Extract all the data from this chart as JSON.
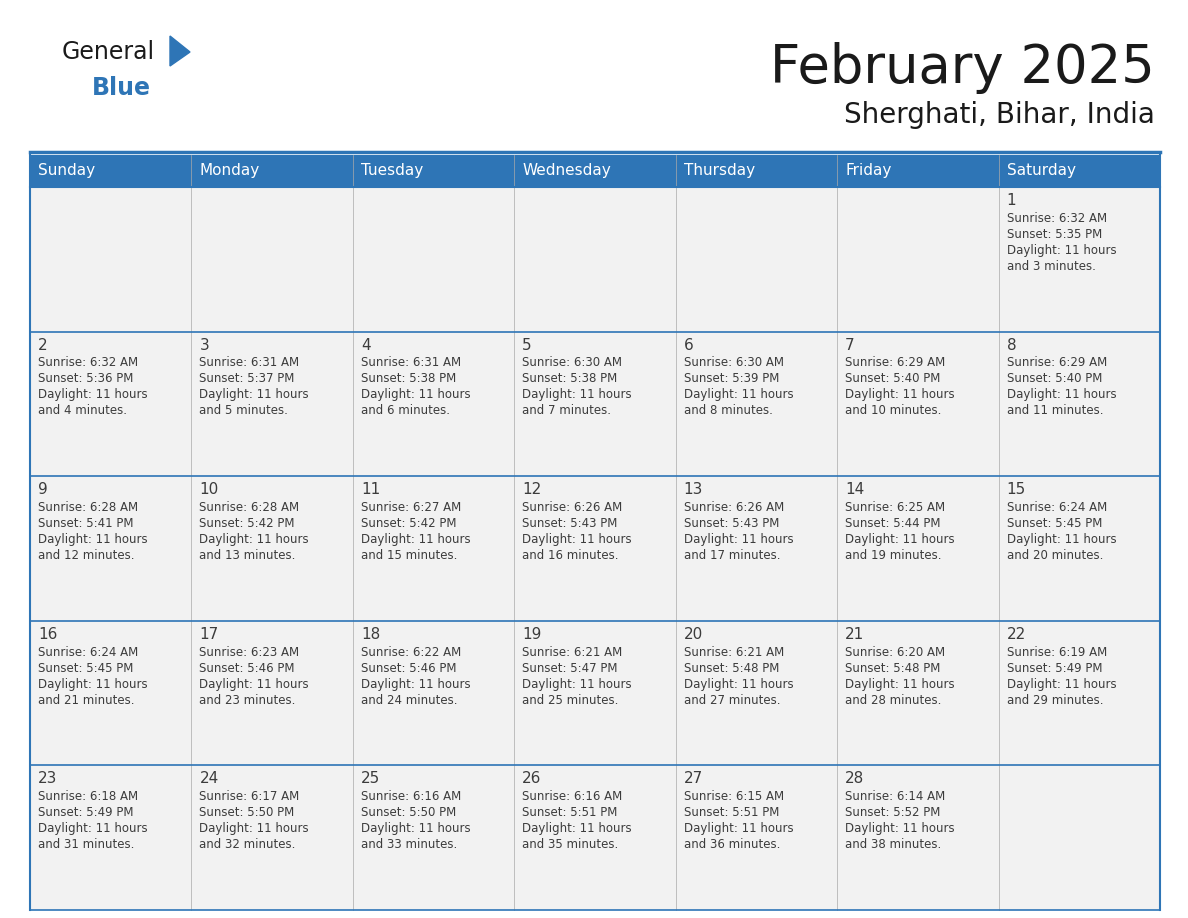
{
  "title": "February 2025",
  "subtitle": "Sherghati, Bihar, India",
  "header_bg": "#2E75B6",
  "header_text": "#FFFFFF",
  "cell_bg": "#F2F2F2",
  "border_color": "#2E75B6",
  "border_color_light": "#2E75B6",
  "day_names": [
    "Sunday",
    "Monday",
    "Tuesday",
    "Wednesday",
    "Thursday",
    "Friday",
    "Saturday"
  ],
  "days": [
    {
      "day": 1,
      "col": 6,
      "row": 0,
      "sunrise": "6:32 AM",
      "sunset": "5:35 PM",
      "daylight": "11 hours and 3 minutes."
    },
    {
      "day": 2,
      "col": 0,
      "row": 1,
      "sunrise": "6:32 AM",
      "sunset": "5:36 PM",
      "daylight": "11 hours and 4 minutes."
    },
    {
      "day": 3,
      "col": 1,
      "row": 1,
      "sunrise": "6:31 AM",
      "sunset": "5:37 PM",
      "daylight": "11 hours and 5 minutes."
    },
    {
      "day": 4,
      "col": 2,
      "row": 1,
      "sunrise": "6:31 AM",
      "sunset": "5:38 PM",
      "daylight": "11 hours and 6 minutes."
    },
    {
      "day": 5,
      "col": 3,
      "row": 1,
      "sunrise": "6:30 AM",
      "sunset": "5:38 PM",
      "daylight": "11 hours and 7 minutes."
    },
    {
      "day": 6,
      "col": 4,
      "row": 1,
      "sunrise": "6:30 AM",
      "sunset": "5:39 PM",
      "daylight": "11 hours and 8 minutes."
    },
    {
      "day": 7,
      "col": 5,
      "row": 1,
      "sunrise": "6:29 AM",
      "sunset": "5:40 PM",
      "daylight": "11 hours and 10 minutes."
    },
    {
      "day": 8,
      "col": 6,
      "row": 1,
      "sunrise": "6:29 AM",
      "sunset": "5:40 PM",
      "daylight": "11 hours and 11 minutes."
    },
    {
      "day": 9,
      "col": 0,
      "row": 2,
      "sunrise": "6:28 AM",
      "sunset": "5:41 PM",
      "daylight": "11 hours and 12 minutes."
    },
    {
      "day": 10,
      "col": 1,
      "row": 2,
      "sunrise": "6:28 AM",
      "sunset": "5:42 PM",
      "daylight": "11 hours and 13 minutes."
    },
    {
      "day": 11,
      "col": 2,
      "row": 2,
      "sunrise": "6:27 AM",
      "sunset": "5:42 PM",
      "daylight": "11 hours and 15 minutes."
    },
    {
      "day": 12,
      "col": 3,
      "row": 2,
      "sunrise": "6:26 AM",
      "sunset": "5:43 PM",
      "daylight": "11 hours and 16 minutes."
    },
    {
      "day": 13,
      "col": 4,
      "row": 2,
      "sunrise": "6:26 AM",
      "sunset": "5:43 PM",
      "daylight": "11 hours and 17 minutes."
    },
    {
      "day": 14,
      "col": 5,
      "row": 2,
      "sunrise": "6:25 AM",
      "sunset": "5:44 PM",
      "daylight": "11 hours and 19 minutes."
    },
    {
      "day": 15,
      "col": 6,
      "row": 2,
      "sunrise": "6:24 AM",
      "sunset": "5:45 PM",
      "daylight": "11 hours and 20 minutes."
    },
    {
      "day": 16,
      "col": 0,
      "row": 3,
      "sunrise": "6:24 AM",
      "sunset": "5:45 PM",
      "daylight": "11 hours and 21 minutes."
    },
    {
      "day": 17,
      "col": 1,
      "row": 3,
      "sunrise": "6:23 AM",
      "sunset": "5:46 PM",
      "daylight": "11 hours and 23 minutes."
    },
    {
      "day": 18,
      "col": 2,
      "row": 3,
      "sunrise": "6:22 AM",
      "sunset": "5:46 PM",
      "daylight": "11 hours and 24 minutes."
    },
    {
      "day": 19,
      "col": 3,
      "row": 3,
      "sunrise": "6:21 AM",
      "sunset": "5:47 PM",
      "daylight": "11 hours and 25 minutes."
    },
    {
      "day": 20,
      "col": 4,
      "row": 3,
      "sunrise": "6:21 AM",
      "sunset": "5:48 PM",
      "daylight": "11 hours and 27 minutes."
    },
    {
      "day": 21,
      "col": 5,
      "row": 3,
      "sunrise": "6:20 AM",
      "sunset": "5:48 PM",
      "daylight": "11 hours and 28 minutes."
    },
    {
      "day": 22,
      "col": 6,
      "row": 3,
      "sunrise": "6:19 AM",
      "sunset": "5:49 PM",
      "daylight": "11 hours and 29 minutes."
    },
    {
      "day": 23,
      "col": 0,
      "row": 4,
      "sunrise": "6:18 AM",
      "sunset": "5:49 PM",
      "daylight": "11 hours and 31 minutes."
    },
    {
      "day": 24,
      "col": 1,
      "row": 4,
      "sunrise": "6:17 AM",
      "sunset": "5:50 PM",
      "daylight": "11 hours and 32 minutes."
    },
    {
      "day": 25,
      "col": 2,
      "row": 4,
      "sunrise": "6:16 AM",
      "sunset": "5:50 PM",
      "daylight": "11 hours and 33 minutes."
    },
    {
      "day": 26,
      "col": 3,
      "row": 4,
      "sunrise": "6:16 AM",
      "sunset": "5:51 PM",
      "daylight": "11 hours and 35 minutes."
    },
    {
      "day": 27,
      "col": 4,
      "row": 4,
      "sunrise": "6:15 AM",
      "sunset": "5:51 PM",
      "daylight": "11 hours and 36 minutes."
    },
    {
      "day": 28,
      "col": 5,
      "row": 4,
      "sunrise": "6:14 AM",
      "sunset": "5:52 PM",
      "daylight": "11 hours and 38 minutes."
    }
  ],
  "title_fontsize": 38,
  "subtitle_fontsize": 20,
  "dayname_fontsize": 11,
  "daynum_fontsize": 11,
  "cell_text_fontsize": 8.5
}
